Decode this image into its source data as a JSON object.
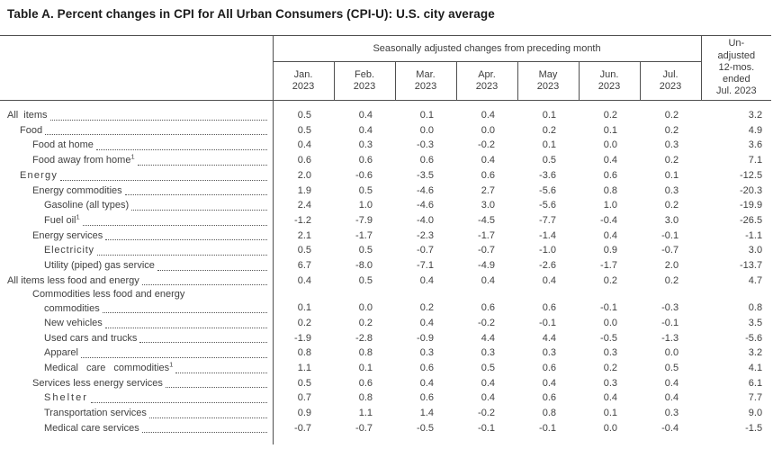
{
  "title": "Table A. Percent changes in CPI for All Urban Consumers (CPI-U): U.S. city average",
  "table": {
    "span_header": "Seasonally adjusted changes from preceding month",
    "unadjusted_header_lines": [
      "Un-",
      "adjusted",
      "12-mos.",
      "ended",
      "Jul. 2023"
    ],
    "month_columns": [
      {
        "month": "Jan.",
        "year": "2023"
      },
      {
        "month": "Feb.",
        "year": "2023"
      },
      {
        "month": "Mar.",
        "year": "2023"
      },
      {
        "month": "Apr.",
        "year": "2023"
      },
      {
        "month": "May",
        "year": "2023"
      },
      {
        "month": "Jun.",
        "year": "2023"
      },
      {
        "month": "Jul.",
        "year": "2023"
      }
    ],
    "rows": [
      {
        "lines": [
          {
            "text": "All items",
            "indent": 0,
            "leader": true
          }
        ],
        "values": [
          "0.5",
          "0.4",
          "0.1",
          "0.4",
          "0.1",
          "0.2",
          "0.2",
          "3.2"
        ]
      },
      {
        "lines": [
          {
            "text": "Food",
            "indent": 1,
            "leader": true
          }
        ],
        "values": [
          "0.5",
          "0.4",
          "0.0",
          "0.0",
          "0.2",
          "0.1",
          "0.2",
          "4.9"
        ]
      },
      {
        "lines": [
          {
            "text": "Food at home",
            "indent": 2,
            "leader": true
          }
        ],
        "values": [
          "0.4",
          "0.3",
          "-0.3",
          "-0.2",
          "0.1",
          "0.0",
          "0.3",
          "3.6"
        ]
      },
      {
        "lines": [
          {
            "text": "Food away from home",
            "sup": "1",
            "indent": 2,
            "leader": true
          }
        ],
        "values": [
          "0.6",
          "0.6",
          "0.6",
          "0.4",
          "0.5",
          "0.4",
          "0.2",
          "7.1"
        ]
      },
      {
        "lines": [
          {
            "text": "Energy",
            "indent": 1,
            "leader": true
          }
        ],
        "values": [
          "2.0",
          "-0.6",
          "-3.5",
          "0.6",
          "-3.6",
          "0.6",
          "0.1",
          "-12.5"
        ]
      },
      {
        "lines": [
          {
            "text": "Energy commodities",
            "indent": 2,
            "leader": true
          }
        ],
        "values": [
          "1.9",
          "0.5",
          "-4.6",
          "2.7",
          "-5.6",
          "0.8",
          "0.3",
          "-20.3"
        ]
      },
      {
        "lines": [
          {
            "text": "Gasoline (all types)",
            "indent": 3,
            "leader": true
          }
        ],
        "values": [
          "2.4",
          "1.0",
          "-4.6",
          "3.0",
          "-5.6",
          "1.0",
          "0.2",
          "-19.9"
        ]
      },
      {
        "lines": [
          {
            "text": "Fuel oil",
            "sup": "1",
            "indent": 3,
            "leader": true
          }
        ],
        "values": [
          "-1.2",
          "-7.9",
          "-4.0",
          "-4.5",
          "-7.7",
          "-0.4",
          "3.0",
          "-26.5"
        ]
      },
      {
        "lines": [
          {
            "text": "Energy services",
            "indent": 2,
            "leader": true
          }
        ],
        "values": [
          "2.1",
          "-1.7",
          "-2.3",
          "-1.7",
          "-1.4",
          "0.4",
          "-0.1",
          "-1.1"
        ]
      },
      {
        "lines": [
          {
            "text": "Electricity",
            "indent": 3,
            "leader": true
          }
        ],
        "values": [
          "0.5",
          "0.5",
          "-0.7",
          "-0.7",
          "-1.0",
          "0.9",
          "-0.7",
          "3.0"
        ]
      },
      {
        "lines": [
          {
            "text": "Utility (piped) gas service",
            "indent": 3,
            "leader": true
          }
        ],
        "values": [
          "6.7",
          "-8.0",
          "-7.1",
          "-4.9",
          "-2.6",
          "-1.7",
          "2.0",
          "-13.7"
        ]
      },
      {
        "lines": [
          {
            "text": "All items less food and energy",
            "indent": 0,
            "leader": true
          }
        ],
        "values": [
          "0.4",
          "0.5",
          "0.4",
          "0.4",
          "0.4",
          "0.2",
          "0.2",
          "4.7"
        ]
      },
      {
        "lines": [
          {
            "text": "Commodities less food and energy",
            "indent": 2,
            "leader": false
          },
          {
            "text": "commodities",
            "indent": 3,
            "leader": true
          }
        ],
        "values": [
          "0.1",
          "0.0",
          "0.2",
          "0.6",
          "0.6",
          "-0.1",
          "-0.3",
          "0.8"
        ]
      },
      {
        "lines": [
          {
            "text": "New vehicles",
            "indent": 3,
            "leader": true
          }
        ],
        "values": [
          "0.2",
          "0.2",
          "0.4",
          "-0.2",
          "-0.1",
          "0.0",
          "-0.1",
          "3.5"
        ]
      },
      {
        "lines": [
          {
            "text": "Used cars and trucks",
            "indent": 3,
            "leader": true
          }
        ],
        "values": [
          "-1.9",
          "-2.8",
          "-0.9",
          "4.4",
          "4.4",
          "-0.5",
          "-1.3",
          "-5.6"
        ]
      },
      {
        "lines": [
          {
            "text": "Apparel",
            "indent": 3,
            "leader": true
          }
        ],
        "values": [
          "0.8",
          "0.8",
          "0.3",
          "0.3",
          "0.3",
          "0.3",
          "0.0",
          "3.2"
        ]
      },
      {
        "lines": [
          {
            "text": "Medical care commodities",
            "sup": "1",
            "indent": 3,
            "leader": true
          }
        ],
        "values": [
          "1.1",
          "0.1",
          "0.6",
          "0.5",
          "0.6",
          "0.2",
          "0.5",
          "4.1"
        ]
      },
      {
        "lines": [
          {
            "text": "Services less energy services",
            "indent": 2,
            "leader": true
          }
        ],
        "values": [
          "0.5",
          "0.6",
          "0.4",
          "0.4",
          "0.4",
          "0.3",
          "0.4",
          "6.1"
        ]
      },
      {
        "lines": [
          {
            "text": "Shelter",
            "indent": 3,
            "leader": true
          }
        ],
        "values": [
          "0.7",
          "0.8",
          "0.6",
          "0.4",
          "0.6",
          "0.4",
          "0.4",
          "7.7"
        ]
      },
      {
        "lines": [
          {
            "text": "Transportation services",
            "indent": 3,
            "leader": true
          }
        ],
        "values": [
          "0.9",
          "1.1",
          "1.4",
          "-0.2",
          "0.8",
          "0.1",
          "0.3",
          "9.0"
        ]
      },
      {
        "lines": [
          {
            "text": "Medical care services",
            "indent": 3,
            "leader": true
          }
        ],
        "values": [
          "-0.7",
          "-0.7",
          "-0.5",
          "-0.1",
          "-0.1",
          "0.0",
          "-0.4",
          "-1.5"
        ]
      }
    ]
  }
}
